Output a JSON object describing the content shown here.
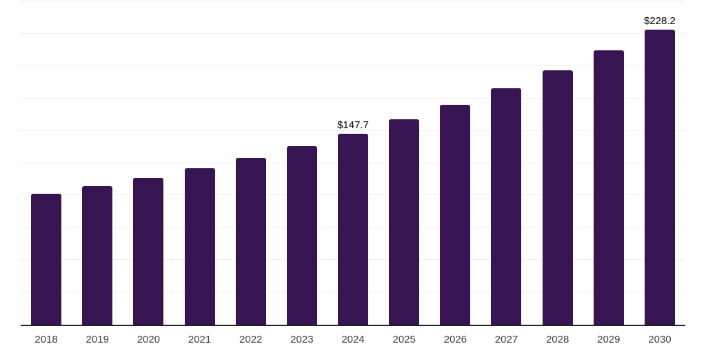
{
  "chart": {
    "background_color": "#ffffff",
    "bar_color": "#371553",
    "gridline_color": "#f1eff2",
    "axis_line_color": "#212121",
    "tick_label_color": "#3d3d3d",
    "value_label_color": "#000000"
  },
  "chart_data": {
    "type": "bar",
    "title": "",
    "xlabel": "",
    "ylabel": "",
    "categories": [
      "2018",
      "2019",
      "2020",
      "2021",
      "2022",
      "2023",
      "2024",
      "2025",
      "2026",
      "2027",
      "2028",
      "2029",
      "2030"
    ],
    "values": [
      101.3,
      107.2,
      113.7,
      120.8,
      128.9,
      138.3,
      147.7,
      158.6,
      170.2,
      182.7,
      196.9,
      212.0,
      228.2
    ],
    "data_labels": {
      "2024": "$147.7",
      "2030": "$228.2"
    },
    "ylim": [
      0,
      250
    ],
    "grid_interval": 25,
    "grid": "on",
    "y_tick_labels_shown": false,
    "legend_position": "none"
  }
}
